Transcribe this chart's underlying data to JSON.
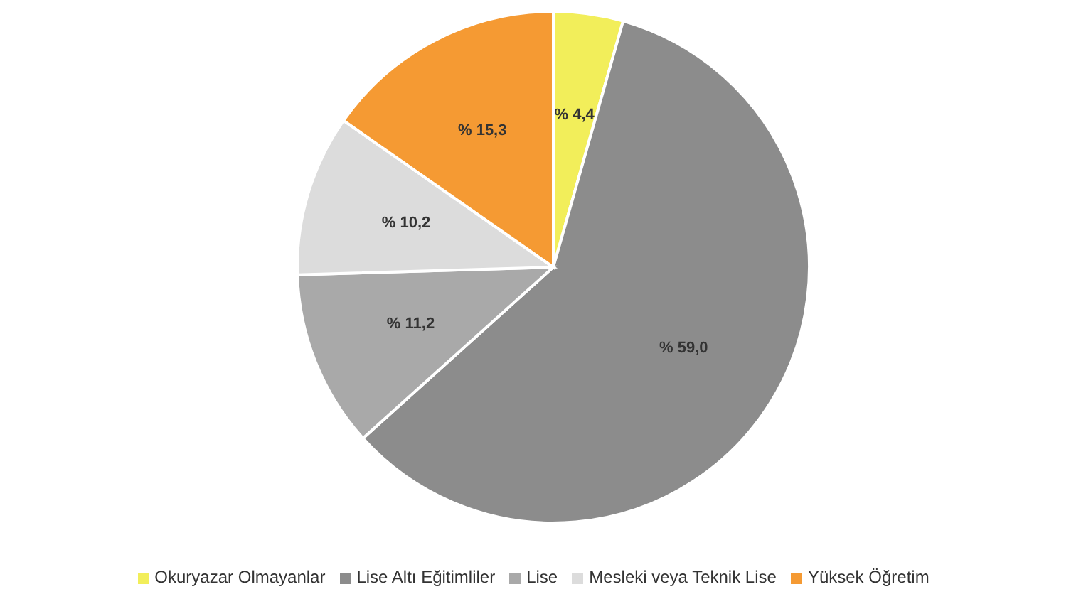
{
  "chart_data": {
    "type": "pie",
    "categories": [
      "Okuryazar Olmayanlar",
      "Lise Altı Eğitimliler",
      "Lise",
      "Mesleki veya Teknik Lise",
      "Yüksek Öğretim"
    ],
    "values": [
      4.4,
      59.0,
      11.2,
      10.2,
      15.3
    ],
    "colors": [
      "#f2ee5a",
      "#8c8c8c",
      "#a9a9a9",
      "#dcdcdc",
      "#f59a33"
    ],
    "value_labels": [
      "% 4,4",
      "% 59,0",
      "% 11,2",
      "% 10,2",
      "% 15,3"
    ],
    "legend": "bottom"
  }
}
